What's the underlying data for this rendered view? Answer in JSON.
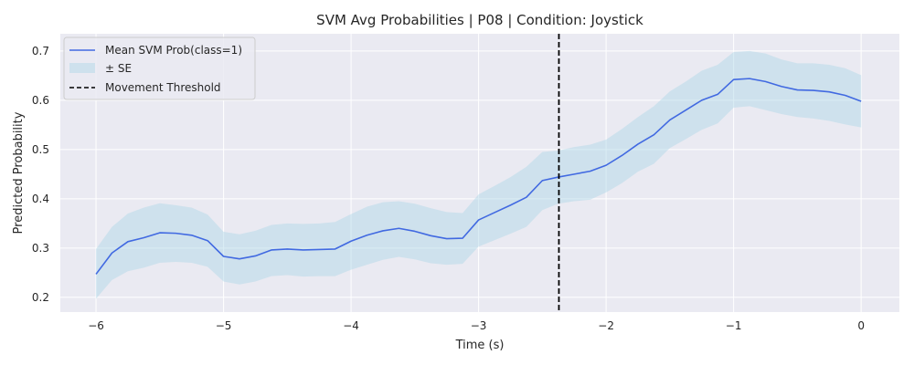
{
  "chart_data": {
    "type": "line",
    "title": "SVM Avg Probabilities | P08 | Condition: Joystick",
    "xlabel": "Time (s)",
    "ylabel": "Predicted Probability",
    "xlim": [
      -6.28,
      0.3
    ],
    "ylim": [
      0.17,
      0.735
    ],
    "xticks": [
      -6,
      -5,
      -4,
      -3,
      -2,
      -1,
      0
    ],
    "xtick_labels": [
      "−6",
      "−5",
      "−4",
      "−3",
      "−2",
      "−1",
      "0"
    ],
    "yticks": [
      0.2,
      0.3,
      0.4,
      0.5,
      0.6,
      0.7
    ],
    "ytick_labels": [
      "0.2",
      "0.3",
      "0.4",
      "0.5",
      "0.6",
      "0.7"
    ],
    "grid": true,
    "legend_position": "top-left",
    "colors": {
      "background": "#eaeaf2",
      "grid": "#ffffff",
      "line": "#4169e1",
      "band": "#add8e6",
      "threshold": "#000000"
    },
    "series": [
      {
        "name": "Mean SVM Prob(class=1)",
        "x": [
          -6.0,
          -5.875,
          -5.75,
          -5.625,
          -5.5,
          -5.375,
          -5.25,
          -5.125,
          -5.0,
          -4.875,
          -4.75,
          -4.625,
          -4.5,
          -4.375,
          -4.25,
          -4.125,
          -4.0,
          -3.875,
          -3.75,
          -3.625,
          -3.5,
          -3.375,
          -3.25,
          -3.125,
          -3.0,
          -2.875,
          -2.75,
          -2.625,
          -2.5,
          -2.375,
          -2.25,
          -2.125,
          -2.0,
          -1.875,
          -1.75,
          -1.625,
          -1.5,
          -1.375,
          -1.25,
          -1.125,
          -1.0,
          -0.875,
          -0.75,
          -0.625,
          -0.5,
          -0.375,
          -0.25,
          -0.125,
          0.0
        ],
        "y": [
          0.247,
          0.29,
          0.313,
          0.321,
          0.331,
          0.33,
          0.326,
          0.315,
          0.283,
          0.278,
          0.284,
          0.296,
          0.298,
          0.296,
          0.297,
          0.298,
          0.314,
          0.326,
          0.335,
          0.34,
          0.334,
          0.325,
          0.319,
          0.32,
          0.357,
          0.372,
          0.387,
          0.403,
          0.437,
          0.444,
          0.45,
          0.456,
          0.468,
          0.488,
          0.511,
          0.53,
          0.56,
          0.58,
          0.6,
          0.612,
          0.642,
          0.644,
          0.638,
          0.628,
          0.621,
          0.62,
          0.617,
          0.61,
          0.598
        ],
        "se_lower": [
          0.197,
          0.235,
          0.253,
          0.26,
          0.27,
          0.272,
          0.27,
          0.262,
          0.232,
          0.226,
          0.232,
          0.243,
          0.245,
          0.242,
          0.243,
          0.243,
          0.256,
          0.266,
          0.276,
          0.282,
          0.277,
          0.269,
          0.266,
          0.268,
          0.303,
          0.316,
          0.329,
          0.343,
          0.377,
          0.39,
          0.395,
          0.398,
          0.413,
          0.432,
          0.455,
          0.471,
          0.503,
          0.521,
          0.54,
          0.553,
          0.585,
          0.588,
          0.58,
          0.572,
          0.566,
          0.563,
          0.558,
          0.551,
          0.545
        ],
        "se_upper": [
          0.298,
          0.343,
          0.37,
          0.382,
          0.391,
          0.387,
          0.382,
          0.368,
          0.333,
          0.328,
          0.335,
          0.347,
          0.35,
          0.349,
          0.35,
          0.353,
          0.369,
          0.384,
          0.393,
          0.395,
          0.39,
          0.381,
          0.373,
          0.371,
          0.409,
          0.426,
          0.444,
          0.465,
          0.495,
          0.498,
          0.505,
          0.51,
          0.52,
          0.542,
          0.566,
          0.588,
          0.618,
          0.638,
          0.66,
          0.672,
          0.698,
          0.7,
          0.695,
          0.683,
          0.675,
          0.675,
          0.672,
          0.665,
          0.651
        ]
      }
    ],
    "band_label": "± SE",
    "threshold": {
      "name": "Movement Threshold",
      "x": -2.37
    }
  }
}
